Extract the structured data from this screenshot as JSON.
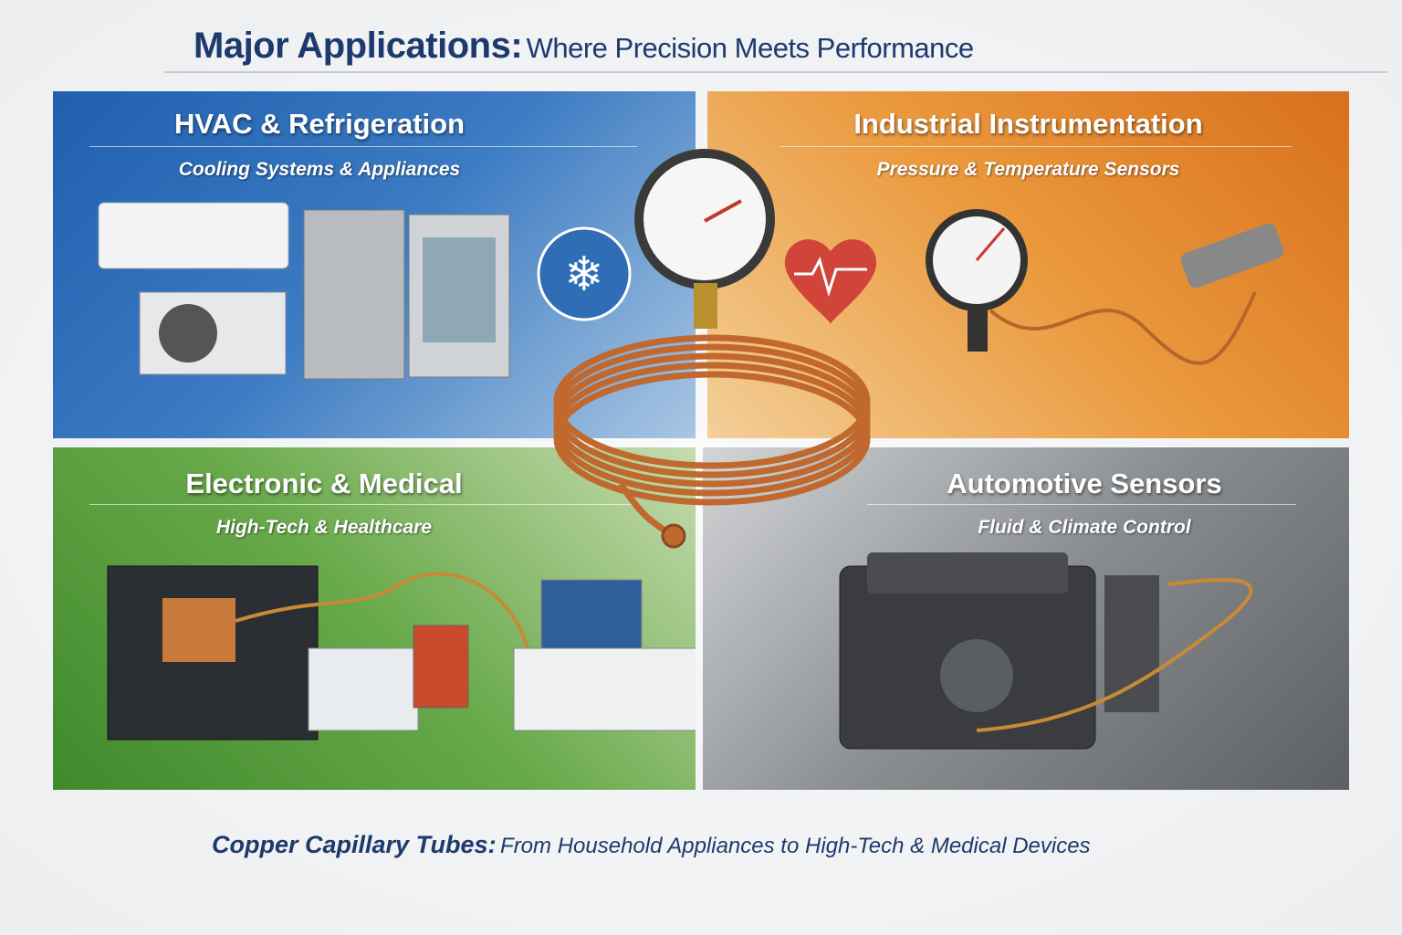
{
  "header": {
    "title_bold": "Major Applications:",
    "title_rest": "Where Precision Meets Performance"
  },
  "sections": [
    {
      "title": "HVAC & Refrigeration",
      "subtitle": "Cooling Systems & Appliances",
      "color": "#2a68b3"
    },
    {
      "title": "Industrial Instrumentation",
      "subtitle": "Pressure & Temperature Sensors",
      "color": "#e0832a"
    },
    {
      "title": "Electronic & Medical",
      "subtitle": "High-Tech & Healthcare",
      "color": "#4f9a37"
    },
    {
      "title": "Automotive Sensors",
      "subtitle": "Fluid & Climate Control",
      "color": "#76797d"
    }
  ],
  "center_icons": [
    "snowflake-icon",
    "pressure-gauge-icon",
    "heart-pulse-icon",
    "copper-coil"
  ],
  "footer": {
    "bold": "Copper Capillary Tubes:",
    "rest": "From Household Appliances to High-Tech & Medical Devices"
  },
  "colors": {
    "title": "#1d3a6e",
    "copper": "#c0682e"
  }
}
